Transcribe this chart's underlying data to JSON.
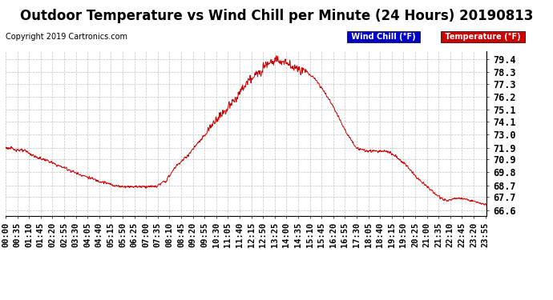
{
  "title": "Outdoor Temperature vs Wind Chill per Minute (24 Hours) 20190813",
  "copyright": "Copyright 2019 Cartronics.com",
  "ylim": [
    66.1,
    80.1
  ],
  "yticks": [
    79.4,
    78.3,
    77.3,
    76.2,
    75.1,
    74.1,
    73.0,
    71.9,
    70.9,
    69.8,
    68.7,
    67.7,
    66.6
  ],
  "legend_labels": [
    "Wind Chill (°F)",
    "Temperature (°F)"
  ],
  "legend_bg_colors": [
    "#0000cc",
    "#cc0000"
  ],
  "line_color": "#cc0000",
  "background_color": "#ffffff",
  "grid_color": "#bbbbbb",
  "title_fontsize": 12,
  "tick_fontsize": 7.5,
  "copyright_fontsize": 7
}
